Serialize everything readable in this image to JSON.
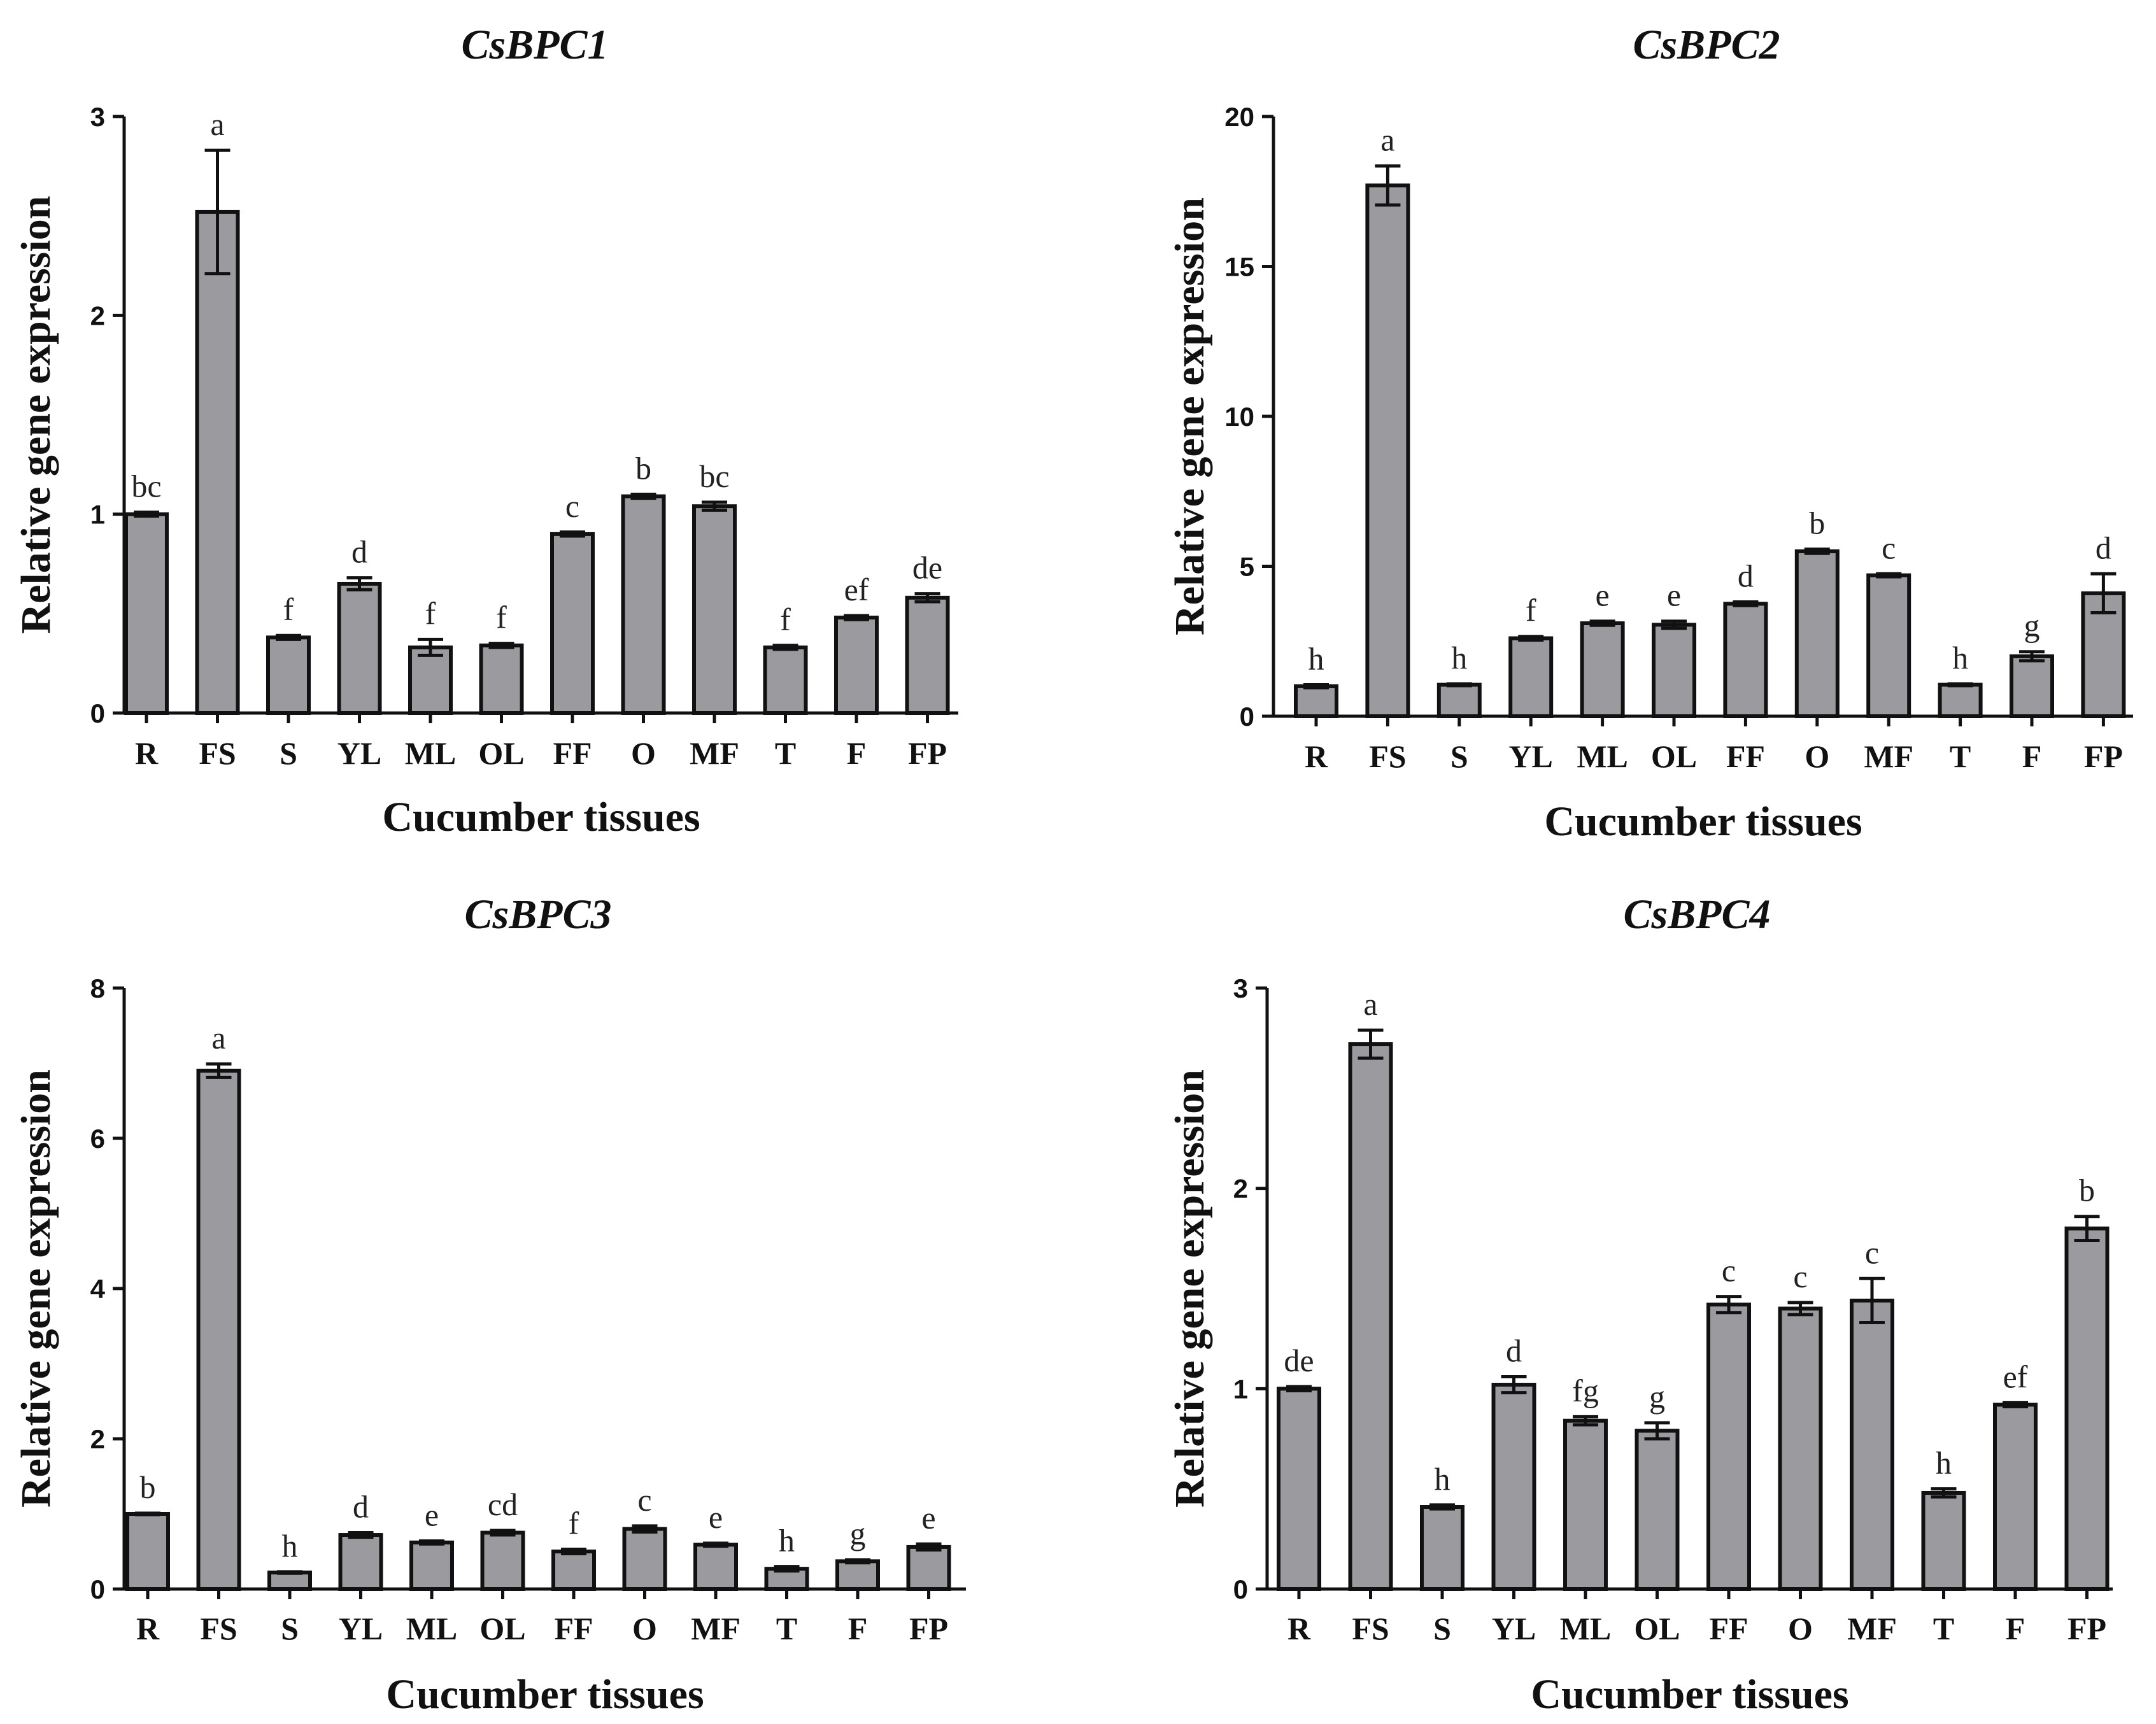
{
  "chart_data": [
    {
      "type": "bar",
      "title": "CsBPC1",
      "xlabel": "Cucumber tissues",
      "ylabel": "Relative gene expression",
      "categories": [
        "R",
        "FS",
        "S",
        "YL",
        "ML",
        "OL",
        "FF",
        "O",
        "MF",
        "T",
        "F",
        "FP"
      ],
      "values": [
        1.0,
        2.52,
        0.38,
        0.65,
        0.33,
        0.34,
        0.9,
        1.09,
        1.04,
        0.33,
        0.48,
        0.58
      ],
      "errors": [
        0.01,
        0.31,
        0.01,
        0.03,
        0.04,
        0.01,
        0.01,
        0.01,
        0.02,
        0.01,
        0.01,
        0.02
      ],
      "significance": [
        "bc",
        "a",
        "f",
        "d",
        "f",
        "f",
        "c",
        "b",
        "bc",
        "f",
        "ef",
        "de"
      ],
      "ylim": [
        0,
        3
      ],
      "yticks": [
        0,
        1,
        2,
        3
      ],
      "ytick_labels": [
        "0",
        "1",
        "2",
        "3"
      ]
    },
    {
      "type": "bar",
      "title": "CsBPC2",
      "xlabel": "Cucumber tissues",
      "ylabel": "Relative gene expression",
      "categories": [
        "R",
        "FS",
        "S",
        "YL",
        "ML",
        "OL",
        "FF",
        "O",
        "MF",
        "T",
        "F",
        "FP"
      ],
      "values": [
        1.0,
        17.7,
        1.05,
        2.6,
        3.1,
        3.05,
        3.75,
        5.5,
        4.7,
        1.05,
        2.0,
        4.1
      ],
      "errors": [
        0.05,
        0.65,
        0.03,
        0.06,
        0.07,
        0.12,
        0.06,
        0.07,
        0.05,
        0.03,
        0.15,
        0.65
      ],
      "significance": [
        "h",
        "a",
        "h",
        "f",
        "e",
        "e",
        "d",
        "b",
        "c",
        "h",
        "g",
        "d"
      ],
      "ylim": [
        0,
        20
      ],
      "yticks": [
        0,
        5,
        10,
        15,
        20
      ],
      "ytick_labels": [
        "0",
        "5",
        "10",
        "15",
        "20"
      ]
    },
    {
      "type": "bar",
      "title": "CsBPC3",
      "xlabel": "Cucumber tissues",
      "ylabel": "Relative gene expression",
      "categories": [
        "R",
        "FS",
        "S",
        "YL",
        "ML",
        "OL",
        "FF",
        "O",
        "MF",
        "T",
        "F",
        "FP"
      ],
      "values": [
        1.0,
        6.9,
        0.22,
        0.72,
        0.62,
        0.75,
        0.5,
        0.8,
        0.59,
        0.27,
        0.37,
        0.56
      ],
      "errors": [
        0.01,
        0.09,
        0.01,
        0.03,
        0.02,
        0.03,
        0.03,
        0.04,
        0.02,
        0.03,
        0.02,
        0.04
      ],
      "significance": [
        "b",
        "a",
        "h",
        "d",
        "e",
        "cd",
        "f",
        "c",
        "e",
        "h",
        "g",
        "e"
      ],
      "ylim": [
        0,
        8
      ],
      "yticks": [
        0,
        2,
        4,
        6,
        8
      ],
      "ytick_labels": [
        "0",
        "2",
        "4",
        "6",
        "8"
      ]
    },
    {
      "type": "bar",
      "title": "CsBPC4",
      "xlabel": "Cucumber tissues",
      "ylabel": "Relative gene expression",
      "categories": [
        "R",
        "FS",
        "S",
        "YL",
        "ML",
        "OL",
        "FF",
        "O",
        "MF",
        "T",
        "F",
        "FP"
      ],
      "values": [
        1.0,
        2.72,
        0.41,
        1.02,
        0.84,
        0.79,
        1.42,
        1.4,
        1.44,
        0.48,
        0.92,
        1.8
      ],
      "errors": [
        0.01,
        0.07,
        0.01,
        0.04,
        0.02,
        0.04,
        0.04,
        0.03,
        0.11,
        0.02,
        0.01,
        0.06
      ],
      "significance": [
        "de",
        "a",
        "h",
        "d",
        "fg",
        "g",
        "c",
        "c",
        "c",
        "h",
        "ef",
        "b"
      ],
      "ylim": [
        0,
        3
      ],
      "yticks": [
        0,
        1,
        2,
        3
      ],
      "ytick_labels": [
        "0",
        "1",
        "2",
        "3"
      ]
    }
  ]
}
